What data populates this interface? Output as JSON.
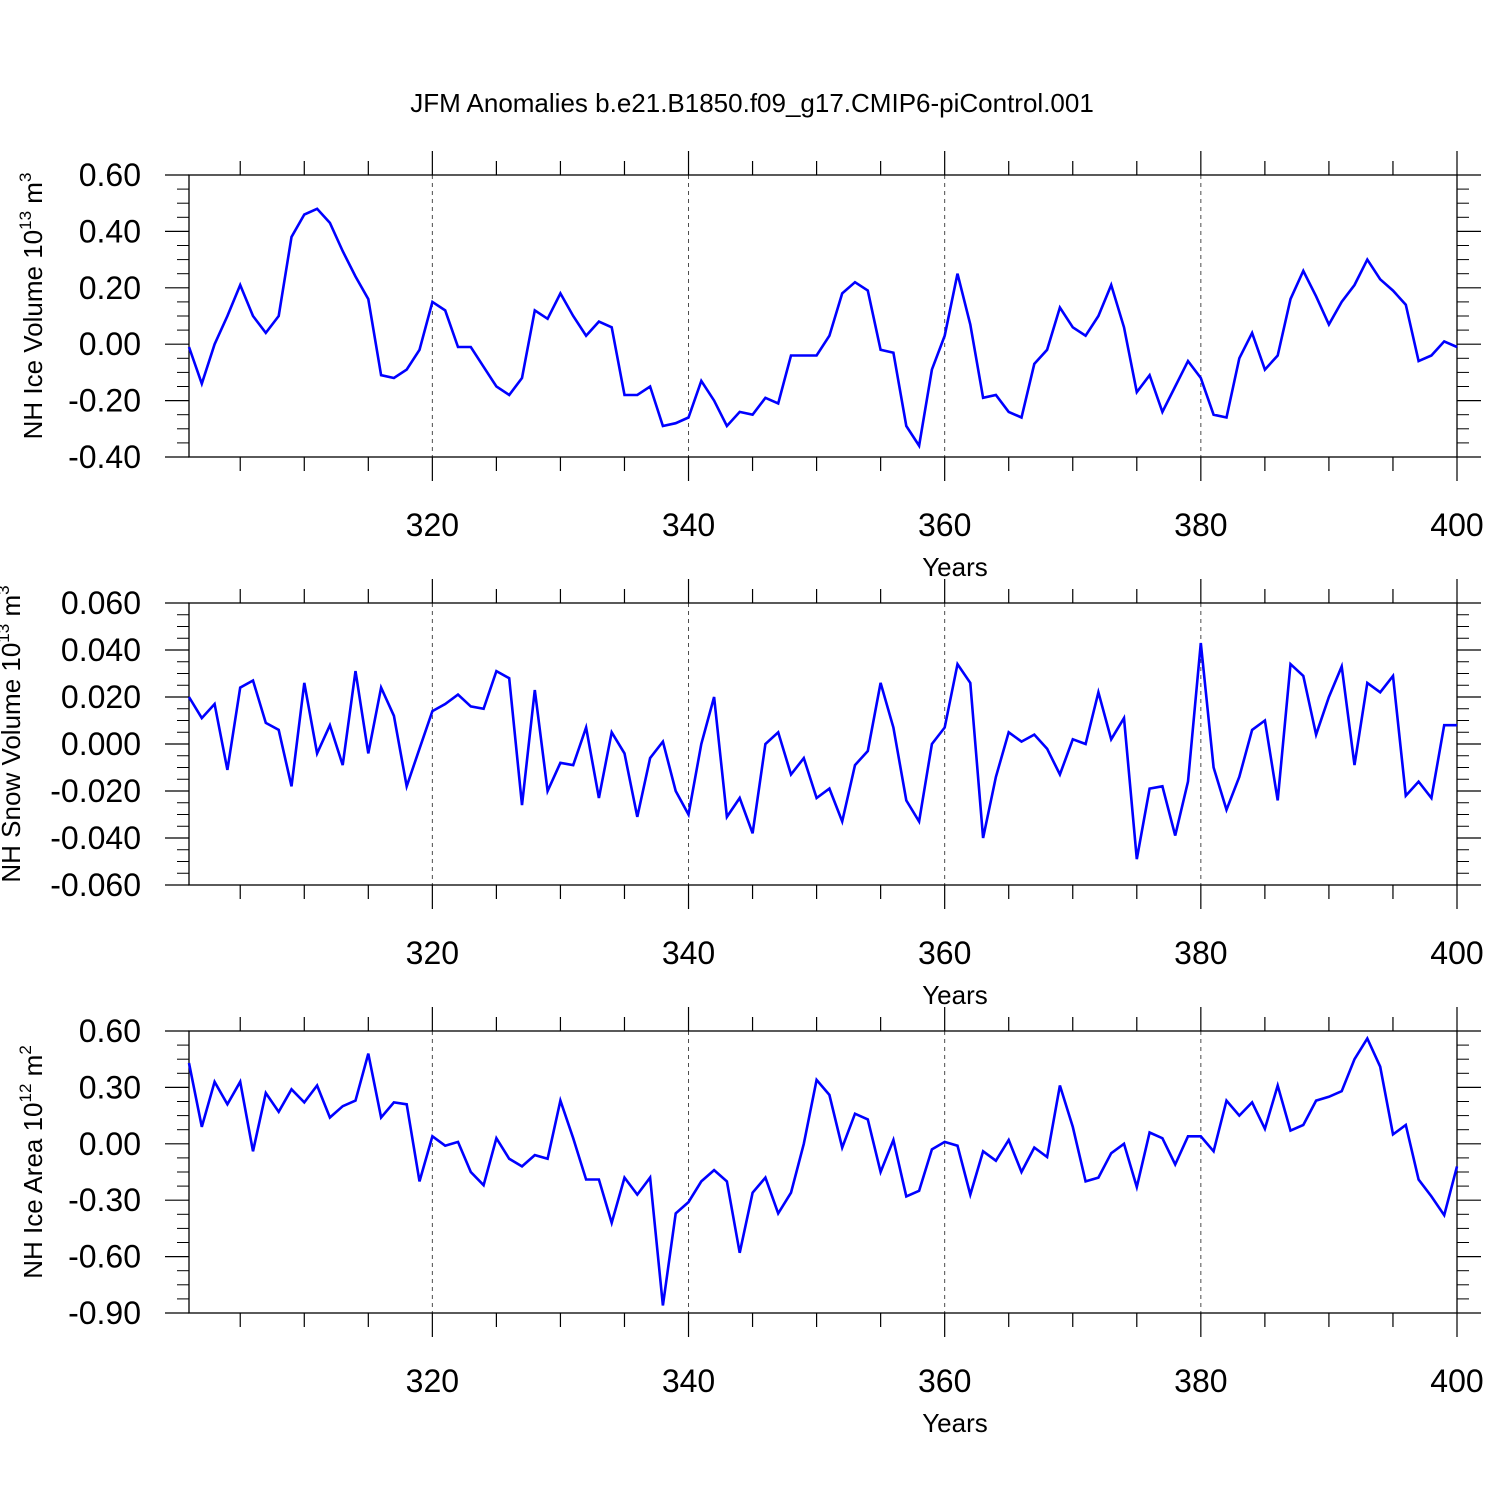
{
  "title": "JFM Anomalies b.e21.B1850.f09_g17.CMIP6-piControl.001",
  "colors": {
    "line": "#0000ff",
    "axis": "#000000",
    "grid": "#000000"
  },
  "chart_data": [
    {
      "type": "line",
      "xlabel": "Years",
      "ylabel": "NH Ice Volume 10",
      "ylabel_exp": "13",
      "ylabel_unit": " m",
      "ylabel_unit_exp": "3",
      "xlim": [
        301,
        400
      ],
      "ylim": [
        -0.4,
        0.6
      ],
      "x_ticks": [
        320,
        340,
        360,
        380,
        400
      ],
      "x_tick_labels": [
        "320",
        "340",
        "360",
        "380",
        "400"
      ],
      "y_ticks": [
        -0.4,
        -0.2,
        0.0,
        0.2,
        0.4,
        0.6
      ],
      "y_tick_labels": [
        "-0.40",
        "-0.20",
        "0.00",
        "0.20",
        "0.40",
        "0.60"
      ],
      "y_minor_step": 0.05,
      "vgrid": [
        320,
        340,
        360,
        380
      ],
      "x_start": 301,
      "series": [
        {
          "values": [
            -0.01,
            -0.14,
            0.0,
            0.1,
            0.21,
            0.1,
            0.04,
            0.1,
            0.38,
            0.46,
            0.48,
            0.43,
            0.33,
            0.24,
            0.16,
            -0.11,
            -0.12,
            -0.09,
            -0.02,
            0.15,
            0.12,
            -0.01,
            -0.01,
            -0.08,
            -0.15,
            -0.18,
            -0.12,
            0.12,
            0.09,
            0.18,
            0.1,
            0.03,
            0.08,
            0.06,
            -0.18,
            -0.18,
            -0.15,
            -0.29,
            -0.28,
            -0.26,
            -0.13,
            -0.2,
            -0.29,
            -0.24,
            -0.25,
            -0.19,
            -0.21,
            -0.04,
            -0.04,
            -0.04,
            0.03,
            0.18,
            0.22,
            0.19,
            -0.02,
            -0.03,
            -0.29,
            -0.36,
            -0.09,
            0.03,
            0.25,
            0.07,
            -0.19,
            -0.18,
            -0.24,
            -0.26,
            -0.07,
            -0.02,
            0.13,
            0.06,
            0.03,
            0.1,
            0.21,
            0.06,
            -0.17,
            -0.11,
            -0.24,
            -0.15,
            -0.06,
            -0.12,
            -0.25,
            -0.26,
            -0.05,
            0.04,
            -0.09,
            -0.04,
            0.16,
            0.26,
            0.17,
            0.07,
            0.15,
            0.21,
            0.3,
            0.23,
            0.19,
            0.14,
            -0.06,
            -0.04,
            0.01,
            -0.01
          ]
        }
      ]
    },
    {
      "type": "line",
      "xlabel": "Years",
      "ylabel": "NH Snow Volume 10",
      "ylabel_exp": "13",
      "ylabel_unit": " m",
      "ylabel_unit_exp": "3",
      "xlim": [
        301,
        400
      ],
      "ylim": [
        -0.06,
        0.06
      ],
      "x_ticks": [
        320,
        340,
        360,
        380,
        400
      ],
      "x_tick_labels": [
        "320",
        "340",
        "360",
        "380",
        "400"
      ],
      "y_ticks": [
        -0.06,
        -0.04,
        -0.02,
        0.0,
        0.02,
        0.04,
        0.06
      ],
      "y_tick_labels": [
        "-0.060",
        "-0.040",
        "-0.020",
        "0.000",
        "0.020",
        "0.040",
        "0.060"
      ],
      "y_minor_step": 0.005,
      "vgrid": [
        320,
        340,
        360,
        380
      ],
      "x_start": 301,
      "series": [
        {
          "values": [
            0.02,
            0.011,
            0.017,
            -0.011,
            0.024,
            0.027,
            0.009,
            0.006,
            -0.018,
            0.026,
            -0.004,
            0.008,
            -0.009,
            0.031,
            -0.004,
            0.024,
            0.012,
            -0.018,
            -0.002,
            0.014,
            0.017,
            0.021,
            0.016,
            0.015,
            0.031,
            0.028,
            -0.026,
            0.023,
            -0.02,
            -0.008,
            -0.009,
            0.007,
            -0.023,
            0.005,
            -0.004,
            -0.031,
            -0.006,
            0.001,
            -0.02,
            -0.03,
            0.0,
            0.02,
            -0.031,
            -0.023,
            -0.038,
            0.0,
            0.005,
            -0.013,
            -0.006,
            -0.023,
            -0.019,
            -0.033,
            -0.009,
            -0.003,
            0.026,
            0.007,
            -0.024,
            -0.033,
            0.0,
            0.007,
            0.034,
            0.026,
            -0.04,
            -0.014,
            0.005,
            0.001,
            0.004,
            -0.002,
            -0.013,
            0.002,
            0.0,
            0.022,
            0.002,
            0.011,
            -0.049,
            -0.019,
            -0.018,
            -0.039,
            -0.016,
            0.043,
            -0.01,
            -0.028,
            -0.014,
            0.006,
            0.01,
            -0.024,
            0.034,
            0.029,
            0.004,
            0.02,
            0.033,
            -0.009,
            0.026,
            0.022,
            0.029,
            -0.022,
            -0.016,
            -0.023,
            0.008,
            0.008
          ]
        }
      ]
    },
    {
      "type": "line",
      "xlabel": "Years",
      "ylabel": "NH Ice Area 10",
      "ylabel_exp": "12",
      "ylabel_unit": " m",
      "ylabel_unit_exp": "2",
      "xlim": [
        301,
        400
      ],
      "ylim": [
        -0.9,
        0.6
      ],
      "x_ticks": [
        320,
        340,
        360,
        380,
        400
      ],
      "x_tick_labels": [
        "320",
        "340",
        "360",
        "380",
        "400"
      ],
      "y_ticks": [
        -0.9,
        -0.6,
        -0.3,
        0.0,
        0.3,
        0.6
      ],
      "y_tick_labels": [
        "-0.90",
        "-0.60",
        "-0.30",
        "0.00",
        "0.30",
        "0.60"
      ],
      "y_minor_step": 0.075,
      "vgrid": [
        320,
        340,
        360,
        380
      ],
      "x_start": 301,
      "series": [
        {
          "values": [
            0.43,
            0.09,
            0.33,
            0.21,
            0.33,
            -0.04,
            0.27,
            0.17,
            0.29,
            0.22,
            0.31,
            0.14,
            0.2,
            0.23,
            0.48,
            0.14,
            0.22,
            0.21,
            -0.2,
            0.04,
            -0.01,
            0.01,
            -0.15,
            -0.22,
            0.03,
            -0.08,
            -0.12,
            -0.06,
            -0.08,
            0.23,
            0.03,
            -0.19,
            -0.19,
            -0.42,
            -0.18,
            -0.27,
            -0.18,
            -0.86,
            -0.37,
            -0.31,
            -0.2,
            -0.14,
            -0.2,
            -0.58,
            -0.26,
            -0.18,
            -0.37,
            -0.26,
            0.0,
            0.34,
            0.26,
            -0.02,
            0.16,
            0.13,
            -0.15,
            0.02,
            -0.28,
            -0.25,
            -0.03,
            0.01,
            -0.01,
            -0.27,
            -0.04,
            -0.09,
            0.02,
            -0.15,
            -0.02,
            -0.07,
            0.31,
            0.09,
            -0.2,
            -0.18,
            -0.05,
            0.0,
            -0.23,
            0.06,
            0.03,
            -0.11,
            0.04,
            0.04,
            -0.04,
            0.23,
            0.15,
            0.22,
            0.08,
            0.31,
            0.07,
            0.1,
            0.23,
            0.25,
            0.28,
            0.45,
            0.56,
            0.41,
            0.05,
            0.1,
            -0.19,
            -0.28,
            -0.38,
            -0.12
          ]
        }
      ]
    }
  ]
}
